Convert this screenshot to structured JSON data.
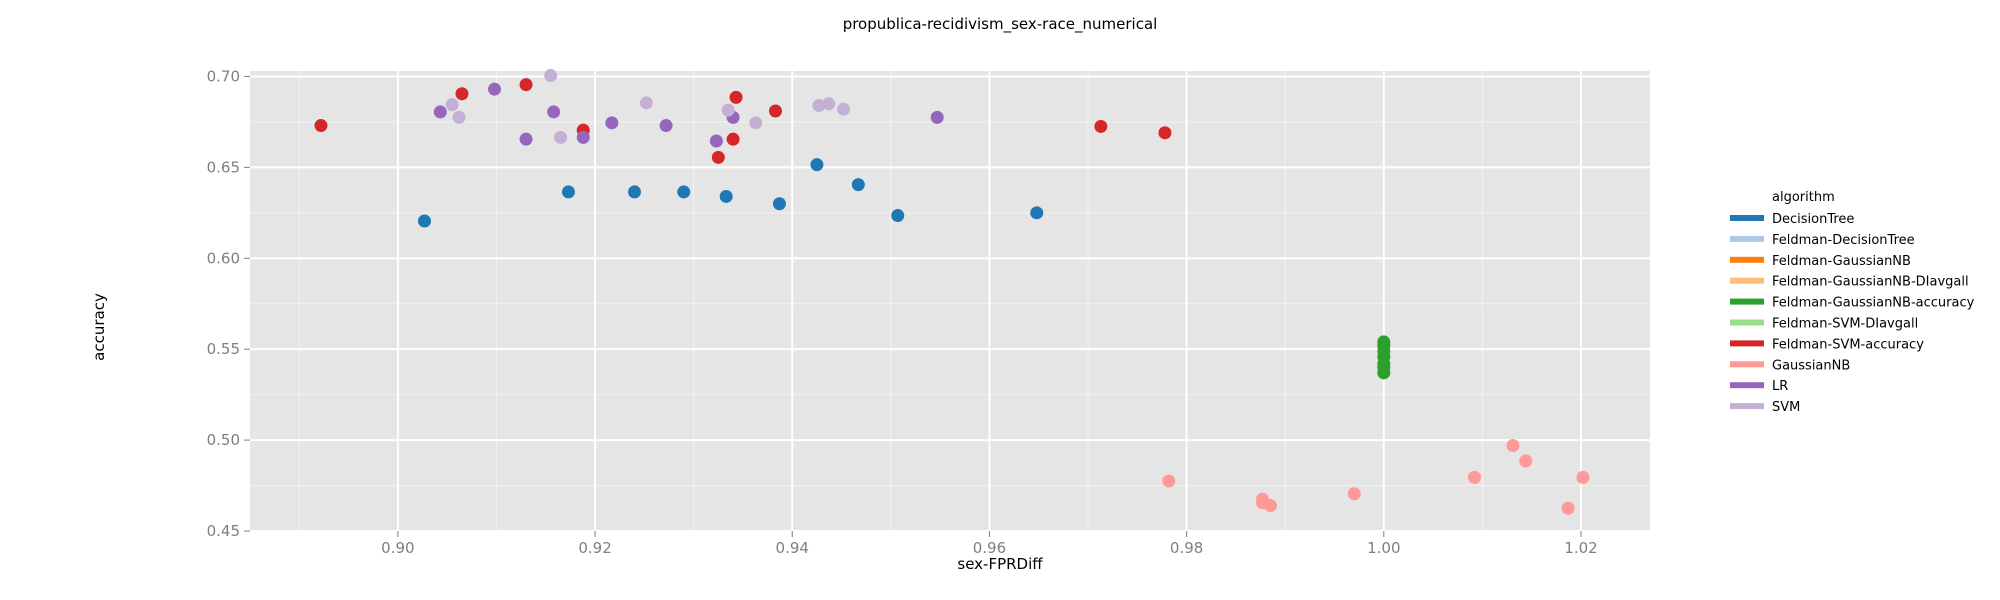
{
  "chart_data": {
    "type": "scatter",
    "title": "propublica-recidivism_sex-race_numerical",
    "xlabel": "sex-FPRDiff",
    "ylabel": "accuracy",
    "xlim": [
      0.885,
      1.027
    ],
    "ylim": [
      0.45,
      0.703
    ],
    "xticks": [
      0.9,
      0.92,
      0.94,
      0.96,
      0.98,
      1.0,
      1.02
    ],
    "xtick_labels": [
      "0.90",
      "0.92",
      "0.94",
      "0.96",
      "0.98",
      "1.00",
      "1.02"
    ],
    "yticks": [
      0.45,
      0.5,
      0.55,
      0.6,
      0.65,
      0.7
    ],
    "ytick_labels": [
      "0.45",
      "0.50",
      "0.55",
      "0.60",
      "0.65",
      "0.70"
    ],
    "grid": true,
    "legend_title": "algorithm",
    "legend_position": "right",
    "series": [
      {
        "name": "DecisionTree",
        "color": "#1f77b4",
        "points": [
          [
            0.9027,
            0.6205
          ],
          [
            0.9173,
            0.6365
          ],
          [
            0.924,
            0.6365
          ],
          [
            0.929,
            0.6365
          ],
          [
            0.9333,
            0.634
          ],
          [
            0.9387,
            0.63
          ],
          [
            0.9425,
            0.6515
          ],
          [
            0.9467,
            0.6405
          ],
          [
            0.9507,
            0.6235
          ],
          [
            0.9648,
            0.625
          ]
        ]
      },
      {
        "name": "Feldman-DecisionTree",
        "color": "#aec7e8",
        "points": []
      },
      {
        "name": "Feldman-GaussianNB",
        "color": "#ff7f0e",
        "points": []
      },
      {
        "name": "Feldman-GaussianNB-DIavgall",
        "color": "#ffbb78",
        "points": []
      },
      {
        "name": "Feldman-GaussianNB-accuracy",
        "color": "#2ca02c",
        "points": [
          [
            1.0,
            0.554
          ],
          [
            1.0,
            0.552
          ],
          [
            1.0,
            0.549
          ],
          [
            1.0,
            0.546
          ],
          [
            1.0,
            0.542
          ],
          [
            1.0,
            0.54
          ],
          [
            1.0,
            0.537
          ]
        ]
      },
      {
        "name": "Feldman-SVM-DIavgall",
        "color": "#98df8a",
        "points": []
      },
      {
        "name": "Feldman-SVM-accuracy",
        "color": "#d62728",
        "points": [
          [
            0.8922,
            0.673
          ],
          [
            0.9065,
            0.6905
          ],
          [
            0.913,
            0.6955
          ],
          [
            0.9188,
            0.6705
          ],
          [
            0.9325,
            0.6555
          ],
          [
            0.934,
            0.6655
          ],
          [
            0.9343,
            0.6885
          ],
          [
            0.9383,
            0.681
          ],
          [
            0.9713,
            0.6725
          ],
          [
            0.9778,
            0.669
          ]
        ]
      },
      {
        "name": "GaussianNB",
        "color": "#ff9896",
        "points": [
          [
            0.9782,
            0.4775
          ],
          [
            0.9877,
            0.4675
          ],
          [
            0.9877,
            0.4655
          ],
          [
            0.9885,
            0.464
          ],
          [
            0.997,
            0.4705
          ],
          [
            1.0092,
            0.4795
          ],
          [
            1.0131,
            0.497
          ],
          [
            1.0144,
            0.4885
          ],
          [
            1.0187,
            0.4625
          ],
          [
            1.0202,
            0.4795
          ]
        ]
      },
      {
        "name": "LR",
        "color": "#9467bd",
        "points": [
          [
            0.9043,
            0.6805
          ],
          [
            0.9098,
            0.693
          ],
          [
            0.913,
            0.6655
          ],
          [
            0.9158,
            0.6805
          ],
          [
            0.9188,
            0.6665
          ],
          [
            0.9217,
            0.6745
          ],
          [
            0.9272,
            0.673
          ],
          [
            0.9323,
            0.6645
          ],
          [
            0.934,
            0.6775
          ],
          [
            0.9547,
            0.6775
          ]
        ]
      },
      {
        "name": "SVM",
        "color": "#c5b0d5",
        "points": [
          [
            0.9055,
            0.6845
          ],
          [
            0.9062,
            0.6775
          ],
          [
            0.9155,
            0.7005
          ],
          [
            0.9165,
            0.6665
          ],
          [
            0.9252,
            0.6855
          ],
          [
            0.9335,
            0.6815
          ],
          [
            0.9363,
            0.6745
          ],
          [
            0.9427,
            0.684
          ],
          [
            0.9437,
            0.685
          ],
          [
            0.9452,
            0.682
          ]
        ]
      }
    ]
  }
}
